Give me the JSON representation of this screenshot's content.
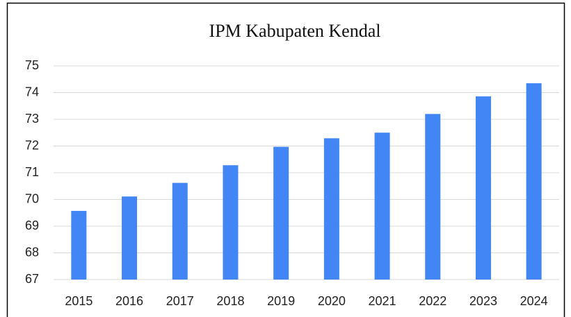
{
  "chart_data": {
    "type": "bar",
    "title": "IPM Kabupaten Kendal",
    "categories": [
      "2015",
      "2016",
      "2017",
      "2018",
      "2019",
      "2020",
      "2021",
      "2022",
      "2023",
      "2024"
    ],
    "values": [
      69.57,
      70.11,
      70.62,
      71.28,
      71.97,
      72.29,
      72.5,
      73.2,
      73.86,
      74.35
    ],
    "color": "#4285f4",
    "ylim": [
      67,
      75
    ],
    "yticks": [
      67,
      68,
      69,
      70,
      71,
      72,
      73,
      74,
      75
    ],
    "grid": true
  }
}
